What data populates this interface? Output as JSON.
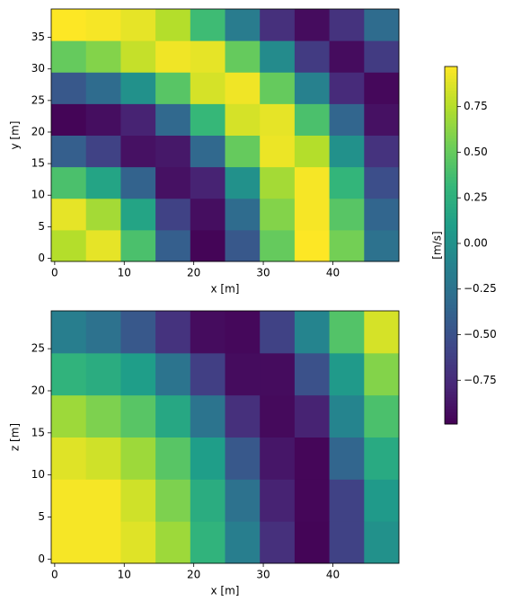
{
  "chart_data": [
    {
      "type": "heatmap",
      "xlabel": "x [m]",
      "ylabel": "y [m]",
      "x": [
        2,
        7,
        12,
        17,
        22,
        27,
        32,
        37,
        42,
        47
      ],
      "y": [
        2,
        7,
        12,
        17,
        22,
        27,
        32,
        37
      ],
      "values": [
        [
          0.75,
          0.9,
          0.4,
          -0.4,
          -0.97,
          -0.45,
          0.5,
          0.97,
          0.55,
          -0.25
        ],
        [
          0.9,
          0.7,
          0.15,
          -0.6,
          -0.92,
          -0.3,
          0.6,
          0.95,
          0.45,
          -0.35
        ],
        [
          0.4,
          0.15,
          -0.37,
          -0.9,
          -0.8,
          0,
          0.7,
          0.95,
          0.3,
          -0.52
        ],
        [
          -0.4,
          -0.6,
          -0.9,
          -0.86,
          -0.33,
          0.5,
          0.92,
          0.75,
          0,
          -0.7
        ],
        [
          -0.97,
          -0.92,
          -0.8,
          -0.33,
          0.32,
          0.85,
          0.9,
          0.4,
          -0.35,
          -0.9
        ],
        [
          -0.45,
          -0.3,
          0,
          0.45,
          0.85,
          0.93,
          0.5,
          -0.13,
          -0.75,
          -0.95
        ],
        [
          0.5,
          0.6,
          0.8,
          0.93,
          0.9,
          0.5,
          -0.05,
          -0.65,
          -0.93,
          -0.65
        ],
        [
          0.97,
          0.95,
          0.9,
          0.75,
          0.35,
          -0.17,
          -0.72,
          -0.93,
          -0.7,
          -0.3
        ]
      ],
      "xlim": [
        -0.5,
        49.5
      ],
      "ylim": [
        -0.5,
        39.5
      ],
      "xticks": [
        0,
        10,
        20,
        30,
        40
      ],
      "yticks": [
        0,
        5,
        10,
        15,
        20,
        25,
        30,
        35
      ],
      "colormap": "viridis"
    },
    {
      "type": "heatmap",
      "xlabel": "x [m]",
      "ylabel": "z [m]",
      "x": [
        2,
        7,
        12,
        17,
        22,
        27,
        32,
        37,
        42,
        47
      ],
      "y": [
        2,
        7,
        12,
        17,
        22,
        27
      ],
      "values": [
        [
          0.95,
          0.95,
          0.88,
          0.68,
          0.28,
          -0.15,
          -0.72,
          -0.97,
          -0.6,
          0
        ],
        [
          0.95,
          0.95,
          0.83,
          0.58,
          0.22,
          -0.25,
          -0.8,
          -0.96,
          -0.6,
          0.07
        ],
        [
          0.88,
          0.83,
          0.68,
          0.45,
          0.1,
          -0.45,
          -0.87,
          -0.96,
          -0.35,
          0.2
        ],
        [
          0.68,
          0.58,
          0.45,
          0.18,
          -0.24,
          -0.72,
          -0.94,
          -0.8,
          -0.1,
          0.4
        ],
        [
          0.28,
          0.22,
          0.1,
          -0.24,
          -0.62,
          -0.93,
          -0.93,
          -0.5,
          0.07,
          0.6
        ],
        [
          -0.15,
          -0.25,
          -0.45,
          -0.7,
          -0.93,
          -0.95,
          -0.6,
          -0.1,
          0.43,
          0.85
        ]
      ],
      "xlim": [
        -0.5,
        49.5
      ],
      "ylim": [
        -0.5,
        29.5
      ],
      "xticks": [
        0,
        10,
        20,
        30,
        40
      ],
      "yticks": [
        0,
        5,
        10,
        15,
        20,
        25
      ],
      "colormap": "viridis"
    }
  ],
  "colorbar": {
    "label": "[m/s]",
    "clim": [
      -0.99,
      0.97
    ],
    "ticks": [
      {
        "value": 0.75,
        "label": "0.75"
      },
      {
        "value": 0.5,
        "label": "0.50"
      },
      {
        "value": 0.25,
        "label": "0.25"
      },
      {
        "value": 0,
        "label": "0.00"
      },
      {
        "value": -0.25,
        "label": "−0.25"
      },
      {
        "value": -0.5,
        "label": "−0.50"
      },
      {
        "value": -0.75,
        "label": "−0.75"
      }
    ]
  }
}
